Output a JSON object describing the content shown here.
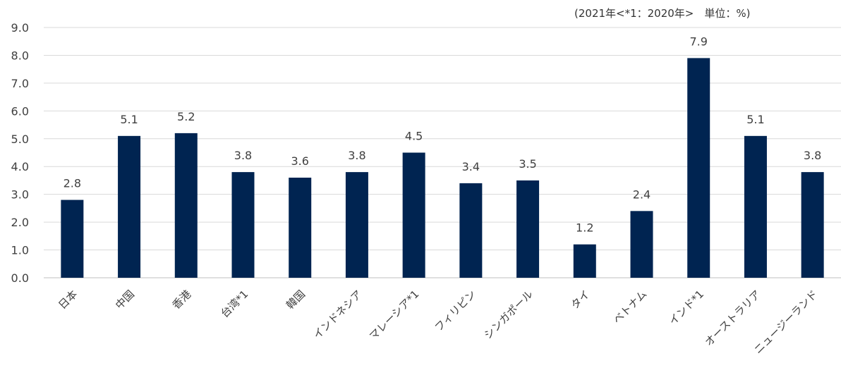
{
  "chart_data": {
    "type": "bar",
    "unit_note": "(2021年<*1：2020年>　単位：%)",
    "categories": [
      "日本",
      "中国",
      "香港",
      "台湾*1",
      "韓国",
      "インドネシア",
      "マレーシア*1",
      "フィリピン",
      "シンガポール",
      "タイ",
      "ベトナム",
      "インド*1",
      "オーストラリア",
      "ニュージーランド"
    ],
    "values": [
      2.8,
      5.1,
      5.2,
      3.8,
      3.6,
      3.8,
      4.5,
      3.4,
      3.5,
      1.2,
      2.4,
      7.9,
      5.1,
      3.8
    ],
    "ylim": [
      0,
      9
    ],
    "yticks": [
      "0.0",
      "1.0",
      "2.0",
      "3.0",
      "4.0",
      "5.0",
      "6.0",
      "7.0",
      "8.0",
      "9.0"
    ],
    "grid": true,
    "colors": {
      "bar": "#002451",
      "grid": "#d9d9d9",
      "axis": "#bfbfbf",
      "text": "#404040"
    }
  }
}
